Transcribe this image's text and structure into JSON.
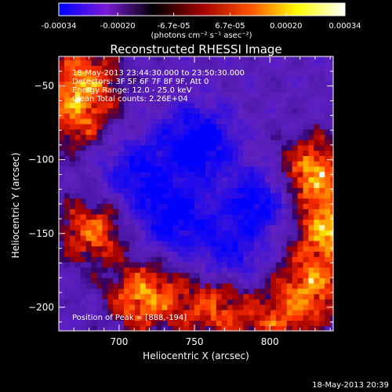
{
  "chart_data": {
    "type": "heatmap",
    "title": "Reconstructed RHESSI Image",
    "xlabel": "Heliocentric X (arcsec)",
    "ylabel": "Heliocentric Y (arcsec)",
    "xlim": [
      660,
      842
    ],
    "ylim": [
      -216,
      -30
    ],
    "xticks": [
      700,
      750,
      800
    ],
    "yticks": [
      -50,
      -100,
      -150,
      -200
    ],
    "colorbar": {
      "ticks": [
        "-0.00034",
        "-0.00020",
        "-6.7e-05",
        "6.7e-05",
        "0.00020",
        "0.00034"
      ],
      "values": [
        -0.00034,
        -0.0002,
        -6.7e-05,
        6.7e-05,
        0.0002,
        0.00034
      ],
      "range": [
        -0.00034,
        0.00034
      ],
      "units": "(photons cm⁻² s⁻¹ asec⁻²)",
      "colors": [
        "#0000ff",
        "#7a1ad6",
        "#000000",
        "#a00000",
        "#ff5000",
        "#ffff00",
        "#ffffff"
      ]
    },
    "info_lines": [
      "18-May-2013 23:44:30.000 to 23:50:30.000",
      "Detectors: 3F 5F 6F 7F 8F 9F, Att 0",
      "Energy Range: 12.0 - 25.0 keV",
      "Clean     Total counts: 2.26E+04"
    ],
    "peak_label": "Position of Peak = [888,-194]",
    "bright_regions": [
      {
        "x": 675,
        "y": -48,
        "intensity": 0.00028
      },
      {
        "x": 668,
        "y": -75,
        "intensity": 0.0002
      },
      {
        "x": 680,
        "y": -150,
        "intensity": 0.00026
      },
      {
        "x": 715,
        "y": -195,
        "intensity": 0.00032
      },
      {
        "x": 760,
        "y": -200,
        "intensity": 0.00024
      },
      {
        "x": 828,
        "y": -110,
        "intensity": 0.00033
      },
      {
        "x": 838,
        "y": -150,
        "intensity": 0.00034
      },
      {
        "x": 825,
        "y": -190,
        "intensity": 0.00028
      },
      {
        "x": 800,
        "y": -215,
        "intensity": 0.0002
      }
    ],
    "dark_regions": [
      {
        "x": 750,
        "y": -90,
        "intensity": -0.00034
      },
      {
        "x": 735,
        "y": -140,
        "intensity": -0.00028
      },
      {
        "x": 790,
        "y": -130,
        "intensity": -0.00026
      },
      {
        "x": 710,
        "y": -110,
        "intensity": -0.00022
      },
      {
        "x": 770,
        "y": -165,
        "intensity": -0.0002
      }
    ]
  },
  "footer": {
    "timestamp": "18-May-2013 20:39"
  }
}
